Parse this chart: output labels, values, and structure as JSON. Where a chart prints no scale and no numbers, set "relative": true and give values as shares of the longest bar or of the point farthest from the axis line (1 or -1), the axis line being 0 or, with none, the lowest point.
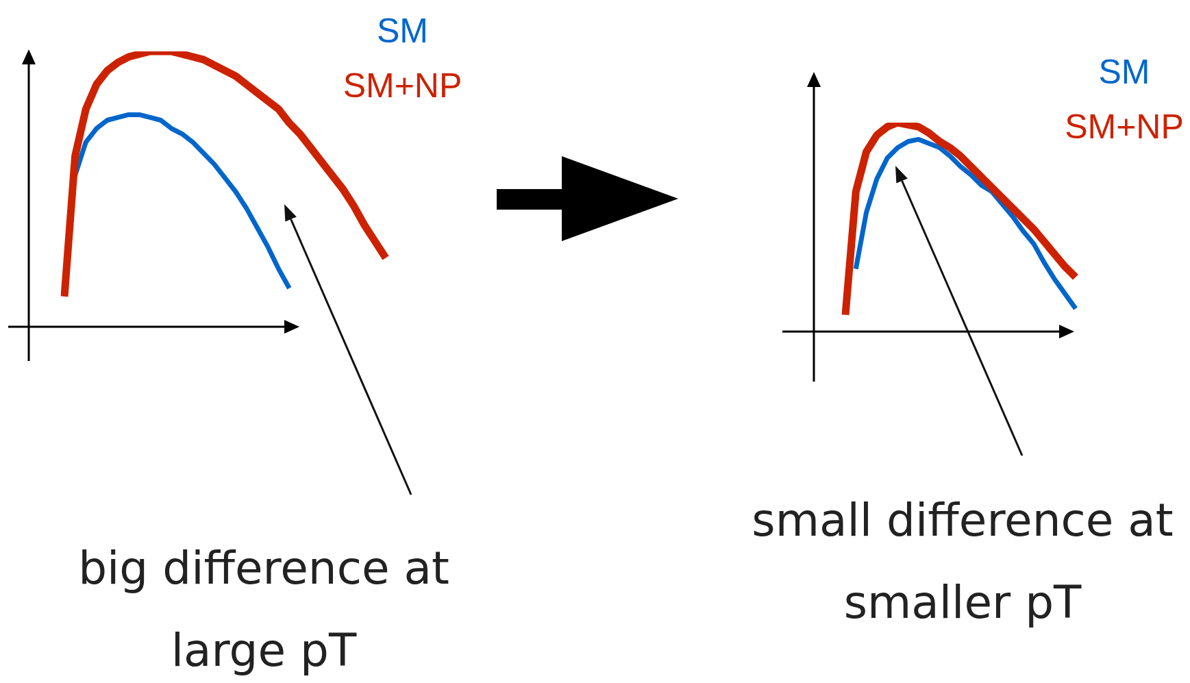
{
  "chart_data": [
    {
      "type": "line",
      "relative": true,
      "tick_labels": false,
      "marker": "none",
      "line_style": "solid",
      "categories": [
        null,
        null,
        null,
        null,
        null,
        null,
        null,
        null,
        null,
        null,
        null,
        null,
        null,
        null,
        null,
        null,
        null,
        null,
        null,
        null,
        null,
        null,
        null,
        null,
        null,
        null,
        null,
        null,
        null,
        null,
        null
      ],
      "series": [
        {
          "name": "SM",
          "color": "#0066cc",
          "values": [
            null,
            0.55,
            0.67,
            0.72,
            0.75,
            0.76,
            0.77,
            0.77,
            0.76,
            0.75,
            0.72,
            0.7,
            0.67,
            0.63,
            0.59,
            0.54,
            0.49,
            0.43,
            0.36,
            0.29,
            0.21,
            0.14,
            null,
            null,
            null,
            null,
            null,
            null,
            null,
            null,
            null
          ]
        },
        {
          "name": "SM+NP",
          "color": "#cc2200",
          "values": [
            0.11,
            0.62,
            0.79,
            0.88,
            0.93,
            0.96,
            0.98,
            0.99,
            1.0,
            1.0,
            1.0,
            0.99,
            0.98,
            0.97,
            0.95,
            0.93,
            0.91,
            0.88,
            0.85,
            0.82,
            0.79,
            0.74,
            0.7,
            0.65,
            0.6,
            0.55,
            0.5,
            0.44,
            0.37,
            0.31,
            0.25
          ]
        }
      ],
      "annotations": [
        "big difference at large pT"
      ]
    },
    {
      "type": "line",
      "relative": true,
      "tick_labels": false,
      "marker": "none",
      "line_style": "solid",
      "categories": [
        null,
        null,
        null,
        null,
        null,
        null,
        null,
        null,
        null,
        null,
        null,
        null,
        null,
        null,
        null,
        null,
        null,
        null,
        null,
        null,
        null,
        null,
        null
      ],
      "series": [
        {
          "name": "SM",
          "color": "#0066cc",
          "values": [
            null,
            0.3,
            0.57,
            0.73,
            0.83,
            0.88,
            0.91,
            0.92,
            0.9,
            0.88,
            0.84,
            0.79,
            0.75,
            0.7,
            0.67,
            0.61,
            0.55,
            0.48,
            0.42,
            0.33,
            0.25,
            0.18,
            0.11
          ]
        },
        {
          "name": "SM+NP",
          "color": "#cc2200",
          "values": [
            0.08,
            0.67,
            0.86,
            0.94,
            0.98,
            1.0,
            0.99,
            0.98,
            0.95,
            0.91,
            0.88,
            0.84,
            0.79,
            0.74,
            0.69,
            0.64,
            0.59,
            0.54,
            0.49,
            0.43,
            0.37,
            0.31,
            0.26
          ]
        }
      ],
      "annotations": [
        "small difference at smaller pT"
      ]
    }
  ]
}
